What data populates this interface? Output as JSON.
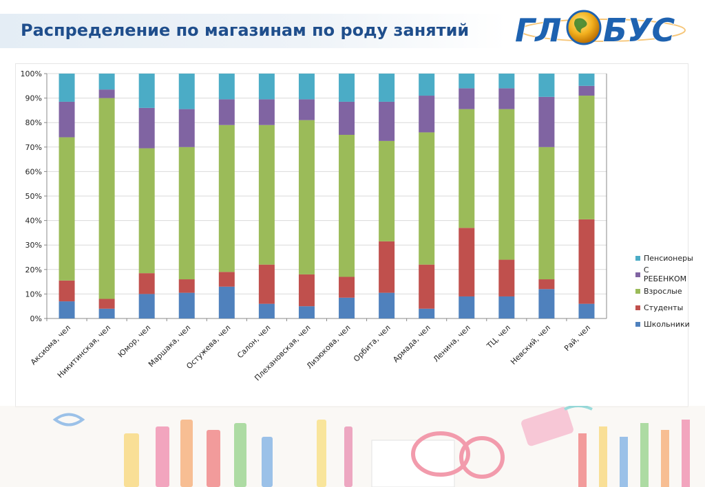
{
  "slide": {
    "title": "Распределение по магазинам по роду занятий",
    "logo_text": "ГЛОБУС"
  },
  "chart_data": {
    "type": "bar",
    "stacked": true,
    "percent_stacked": true,
    "categories": [
      "Аксиома, чел",
      "Никитинская, чел",
      "Юмор, чел",
      "Маршака, чел",
      "Остужева, чел",
      "Салон, чел",
      "Плехановская, чел",
      "Лизюкова, чел",
      "Орбита, чел",
      "Армада, чел",
      "Ленина, чел",
      "ТЦ, чел",
      "Невский, чел",
      "Рай, чел"
    ],
    "series": [
      {
        "name": "Школьники",
        "color": "#4f81bd",
        "values": [
          7,
          4,
          10,
          10.5,
          13,
          6,
          5,
          8.5,
          10.5,
          4,
          9,
          9,
          12,
          6
        ]
      },
      {
        "name": "Студенты",
        "color": "#c0504d",
        "values": [
          8.5,
          4,
          8.5,
          5.5,
          6,
          16,
          13,
          8.5,
          21,
          18,
          28,
          15,
          4,
          34.5
        ]
      },
      {
        "name": "Взрослые",
        "color": "#9bbb59",
        "values": [
          58.5,
          82,
          51,
          54,
          60,
          57,
          63,
          58,
          41,
          54,
          48.5,
          61.5,
          54,
          50.5
        ]
      },
      {
        "name": "С РЕБЕНКОМ",
        "color": "#8064a2",
        "values": [
          14.5,
          3.5,
          16.5,
          15.5,
          10.5,
          10.5,
          8.5,
          13.5,
          16,
          15,
          8.5,
          8.5,
          20.5,
          4
        ]
      },
      {
        "name": "Пенсионеры",
        "color": "#4bacc6",
        "values": [
          11.5,
          6.5,
          14,
          14.5,
          10.5,
          10.5,
          10.5,
          11.5,
          11.5,
          9,
          6,
          6,
          9.5,
          5
        ]
      }
    ],
    "y_ticks": [
      "0%",
      "10%",
      "20%",
      "30%",
      "40%",
      "50%",
      "60%",
      "70%",
      "80%",
      "90%",
      "100%"
    ],
    "ylim": [
      0,
      100
    ],
    "legend_position": "right",
    "legend_order": [
      "Пенсионеры",
      "С РЕБЕНКОМ",
      "Взрослые",
      "Студенты",
      "Школьники"
    ],
    "grid": true
  },
  "colors": {
    "title": "#1f4e8c",
    "logo": "#1e62b0"
  }
}
